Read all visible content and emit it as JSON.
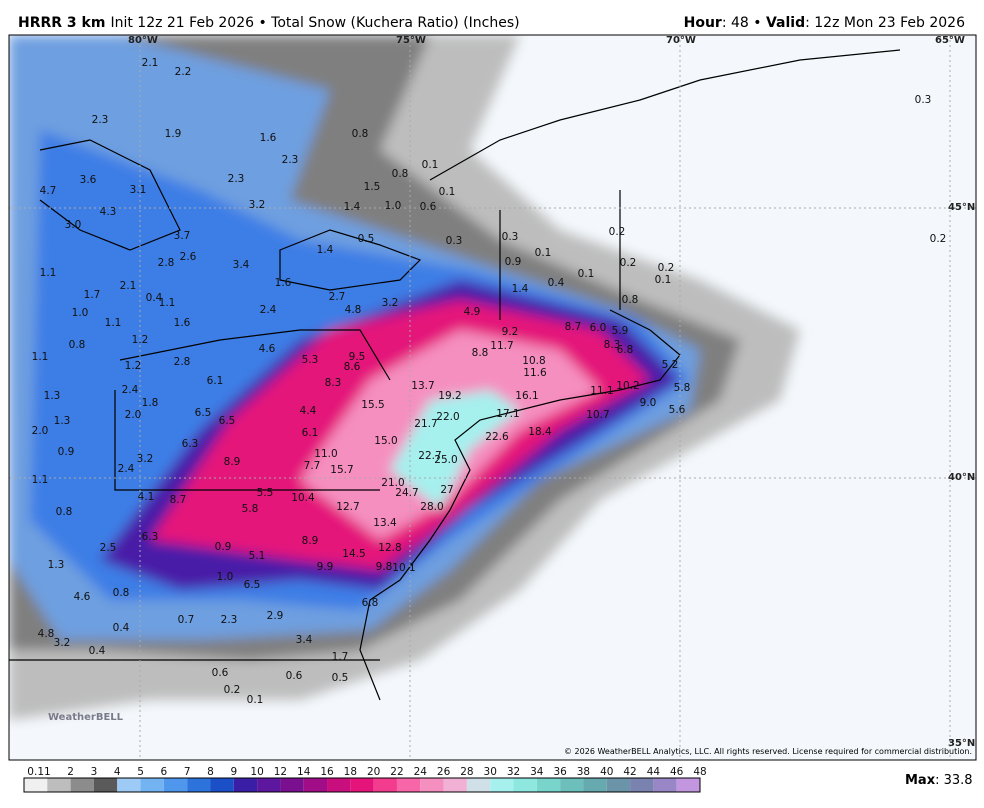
{
  "header": {
    "model": "HRRR 3 km",
    "product": "Init 12z 21 Feb 2026 • Total Snow (Kuchera Ratio) (Inches)",
    "hour_label": "Hour",
    "hour_value": ": 48 • ",
    "valid_label": "Valid",
    "valid_value": ": 12z Mon 23 Feb 2026"
  },
  "map": {
    "grid_labels": [
      "80°W",
      "75°W",
      "70°W",
      "65°W",
      "45°N",
      "40°N",
      "35°N"
    ],
    "labels": [
      "2.1",
      "2.2",
      "2.3",
      "1.9",
      "1.6",
      "0.8",
      "2.3",
      "0.1",
      "0.8",
      "1.5",
      "0.1",
      "2.3",
      "3.6",
      "4.7",
      "3.1",
      "3.2",
      "4.3",
      "1.4",
      "1.0",
      "0.6",
      "3.0",
      "3.7",
      "1.4",
      "0.5",
      "0.3",
      "0.3",
      "0.2",
      "0.2",
      "0.3",
      "1.1",
      "2.8",
      "2.6",
      "3.4",
      "1.6",
      "2.7",
      "0.1",
      "0.9",
      "0.1",
      "0.2",
      "0.2",
      "0.1",
      "0.4",
      "1.4",
      "0.8",
      "1.7",
      "2.1",
      "0.4",
      "1.1",
      "1.0",
      "1.1",
      "1.6",
      "2.4",
      "4.8",
      "3.2",
      "4.9",
      "8.7",
      "6.0",
      "5.9",
      "9.2",
      "1.2",
      "0.8",
      "1.1",
      "4.6",
      "5.3",
      "9.5",
      "8.6",
      "8.8",
      "11.7",
      "10.8",
      "11.6",
      "8.3",
      "6.8",
      "5.2",
      "1.2",
      "2.8",
      "6.1",
      "8.3",
      "13.7",
      "19.2",
      "16.1",
      "11.1",
      "10.2",
      "5.8",
      "9.0",
      "1.3",
      "2.4",
      "1.8",
      "15.5",
      "22.0",
      "17.1",
      "10.7",
      "5.6",
      "6.5",
      "6.5",
      "4.4",
      "21.7",
      "1.3",
      "2.0",
      "2.0",
      "6.1",
      "15.0",
      "22.6",
      "18.4",
      "6.3",
      "0.9",
      "11.0",
      "22.7",
      "25.0",
      "3.2",
      "8.9",
      "7.7",
      "15.7",
      "2.4",
      "1.1",
      "21.0",
      "27",
      "24.7",
      "4.1",
      "8.7",
      "5.5",
      "10.4",
      "5.8",
      "12.7",
      "28.0",
      "0.8",
      "13.4",
      "6.3",
      "8.9",
      "12.8",
      "2.5",
      "0.9",
      "5.1",
      "14.5",
      "9.9",
      "9.8",
      "10.1",
      "1.3",
      "1.0",
      "0.8",
      "4.6",
      "6.5",
      "6.8",
      "0.4",
      "0.7",
      "2.3",
      "2.9",
      "4.8",
      "0.4",
      "3.4",
      "1.7",
      "0.6",
      "0.6",
      "0.5",
      "0.2",
      "0.1",
      "3.2"
    ],
    "logo": "WeatherBELL",
    "copyright": "© 2026 WeatherBELL Analytics, LLC. All rights reserved. License required for commercial distribution."
  },
  "legend": {
    "ticks": [
      0.1,
      1,
      2,
      3,
      4,
      5,
      6,
      7,
      8,
      9,
      10,
      12,
      14,
      16,
      18,
      20,
      22,
      24,
      26,
      28,
      30,
      32,
      34,
      36,
      38,
      40,
      42,
      44,
      46,
      48
    ],
    "colors": [
      "#f0f0f0",
      "#bdbdbd",
      "#8c8c8c",
      "#5a5a5a",
      "#9ecbf5",
      "#74b3f2",
      "#4f97ec",
      "#2d73dc",
      "#1a4fc7",
      "#3a1ea6",
      "#5d169e",
      "#7a0f90",
      "#a10d86",
      "#c90f7e",
      "#e4147a",
      "#f43c8e",
      "#f766a8",
      "#f58fc0",
      "#f0b1d4",
      "#cfe0e8",
      "#a6f0ee",
      "#8ee8e0",
      "#79d5cc",
      "#6cbfba",
      "#66a9ae",
      "#6b94a8",
      "#7a82b0",
      "#9986c6",
      "#c397e0"
    ],
    "max_label": "Max",
    "max_sep": ": ",
    "max": 33.8
  }
}
